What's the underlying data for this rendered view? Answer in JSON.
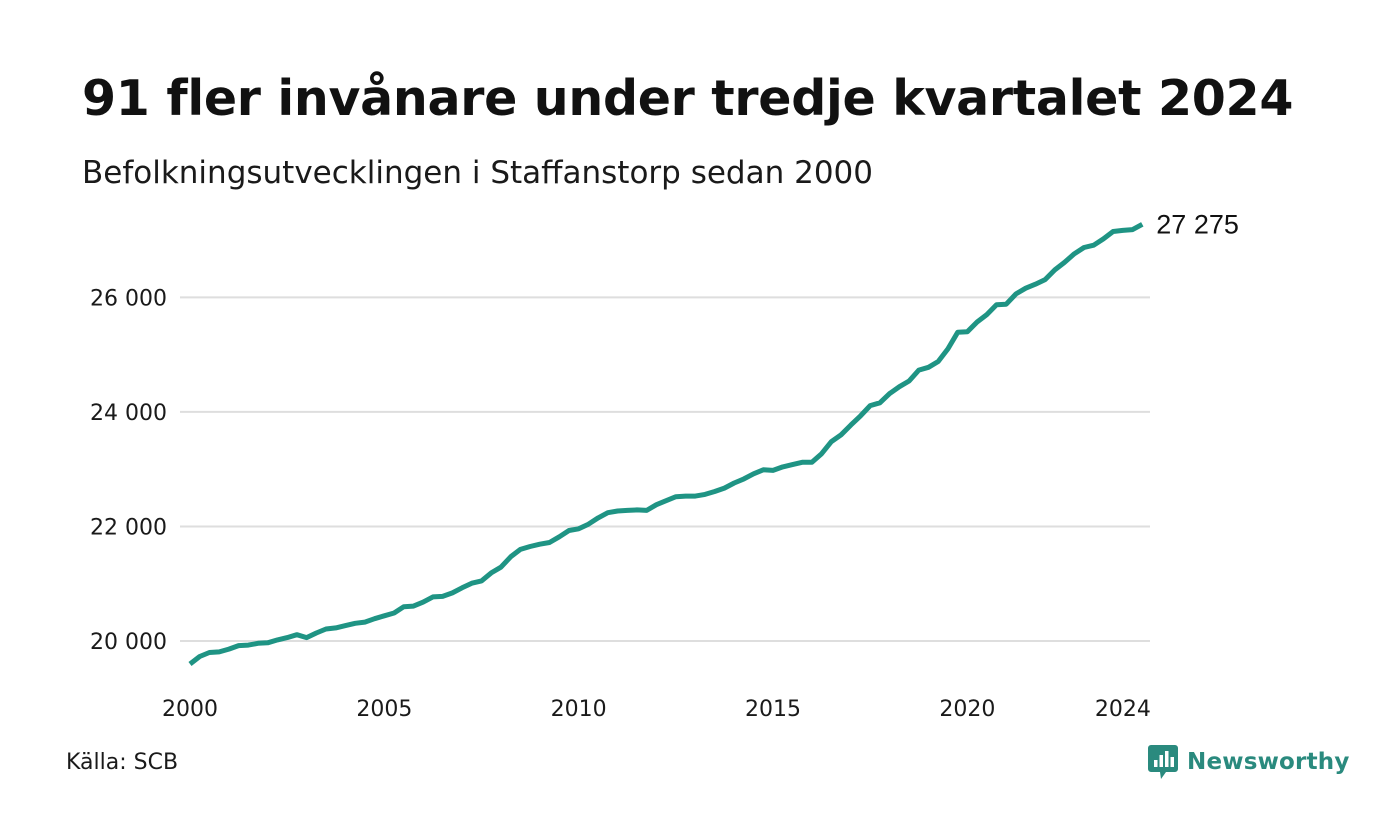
{
  "header": {
    "title": "91 fler invånare under tredje kvartalet 2024",
    "subtitle": "Befolkningsutvecklingen i Staffanstorp sedan 2000"
  },
  "footer": {
    "source": "Källa: SCB",
    "brand": "Newsworthy",
    "brand_icon": "bar-chart-speech-bubble-icon"
  },
  "colors": {
    "line": "#1f9484",
    "grid": "#dedede",
    "brand": "#2a8a7e"
  },
  "chart_data": {
    "type": "line",
    "title": "91 fler invånare under tredje kvartalet 2024",
    "subtitle": "Befolkningsutvecklingen i Staffanstorp sedan 2000",
    "xlabel": "",
    "ylabel": "",
    "x_ticks": [
      "2000",
      "2005",
      "2010",
      "2015",
      "2020",
      "2024"
    ],
    "y_ticks": [
      "20 000",
      "22 000",
      "24 000",
      "26 000"
    ],
    "xlim": [
      2000,
      2024.75
    ],
    "ylim": [
      19250,
      27700
    ],
    "grid": "horizontal",
    "end_label": "27 275",
    "series": [
      {
        "values": [
          [
            2000.0,
            19600
          ],
          [
            2000.25,
            19730
          ],
          [
            2000.5,
            19800
          ],
          [
            2000.75,
            19810
          ],
          [
            2001.0,
            19860
          ],
          [
            2001.25,
            19920
          ],
          [
            2001.5,
            19930
          ],
          [
            2001.75,
            19960
          ],
          [
            2002.0,
            19970
          ],
          [
            2002.25,
            20020
          ],
          [
            2002.5,
            20060
          ],
          [
            2002.75,
            20110
          ],
          [
            2003.0,
            20060
          ],
          [
            2003.25,
            20140
          ],
          [
            2003.5,
            20210
          ],
          [
            2003.75,
            20230
          ],
          [
            2004.0,
            20270
          ],
          [
            2004.25,
            20310
          ],
          [
            2004.5,
            20330
          ],
          [
            2004.75,
            20390
          ],
          [
            2005.0,
            20440
          ],
          [
            2005.25,
            20490
          ],
          [
            2005.5,
            20600
          ],
          [
            2005.75,
            20610
          ],
          [
            2006.0,
            20680
          ],
          [
            2006.25,
            20770
          ],
          [
            2006.5,
            20780
          ],
          [
            2006.75,
            20840
          ],
          [
            2007.0,
            20930
          ],
          [
            2007.25,
            21010
          ],
          [
            2007.5,
            21050
          ],
          [
            2007.75,
            21190
          ],
          [
            2008.0,
            21290
          ],
          [
            2008.25,
            21470
          ],
          [
            2008.5,
            21600
          ],
          [
            2008.75,
            21650
          ],
          [
            2009.0,
            21690
          ],
          [
            2009.25,
            21720
          ],
          [
            2009.5,
            21820
          ],
          [
            2009.75,
            21930
          ],
          [
            2010.0,
            21960
          ],
          [
            2010.25,
            22040
          ],
          [
            2010.5,
            22150
          ],
          [
            2010.75,
            22240
          ],
          [
            2011.0,
            22270
          ],
          [
            2011.25,
            22280
          ],
          [
            2011.5,
            22290
          ],
          [
            2011.75,
            22280
          ],
          [
            2012.0,
            22380
          ],
          [
            2012.25,
            22450
          ],
          [
            2012.5,
            22520
          ],
          [
            2012.75,
            22530
          ],
          [
            2013.0,
            22530
          ],
          [
            2013.25,
            22560
          ],
          [
            2013.5,
            22610
          ],
          [
            2013.75,
            22670
          ],
          [
            2014.0,
            22760
          ],
          [
            2014.25,
            22830
          ],
          [
            2014.5,
            22920
          ],
          [
            2014.75,
            22990
          ],
          [
            2015.0,
            22980
          ],
          [
            2015.25,
            23040
          ],
          [
            2015.5,
            23080
          ],
          [
            2015.75,
            23120
          ],
          [
            2016.0,
            23120
          ],
          [
            2016.25,
            23270
          ],
          [
            2016.5,
            23480
          ],
          [
            2016.75,
            23600
          ],
          [
            2017.0,
            23770
          ],
          [
            2017.25,
            23930
          ],
          [
            2017.5,
            24110
          ],
          [
            2017.75,
            24160
          ],
          [
            2018.0,
            24320
          ],
          [
            2018.25,
            24440
          ],
          [
            2018.5,
            24540
          ],
          [
            2018.75,
            24730
          ],
          [
            2019.0,
            24780
          ],
          [
            2019.25,
            24880
          ],
          [
            2019.5,
            25100
          ],
          [
            2019.75,
            25390
          ],
          [
            2020.0,
            25400
          ],
          [
            2020.25,
            25570
          ],
          [
            2020.5,
            25700
          ],
          [
            2020.75,
            25870
          ],
          [
            2021.0,
            25880
          ],
          [
            2021.25,
            26060
          ],
          [
            2021.5,
            26160
          ],
          [
            2021.75,
            26230
          ],
          [
            2022.0,
            26310
          ],
          [
            2022.25,
            26480
          ],
          [
            2022.5,
            26610
          ],
          [
            2022.75,
            26760
          ],
          [
            2023.0,
            26870
          ],
          [
            2023.25,
            26910
          ],
          [
            2023.5,
            27020
          ],
          [
            2023.75,
            27150
          ],
          [
            2024.0,
            27170
          ],
          [
            2024.25,
            27184
          ],
          [
            2024.5,
            27275
          ]
        ]
      }
    ]
  }
}
